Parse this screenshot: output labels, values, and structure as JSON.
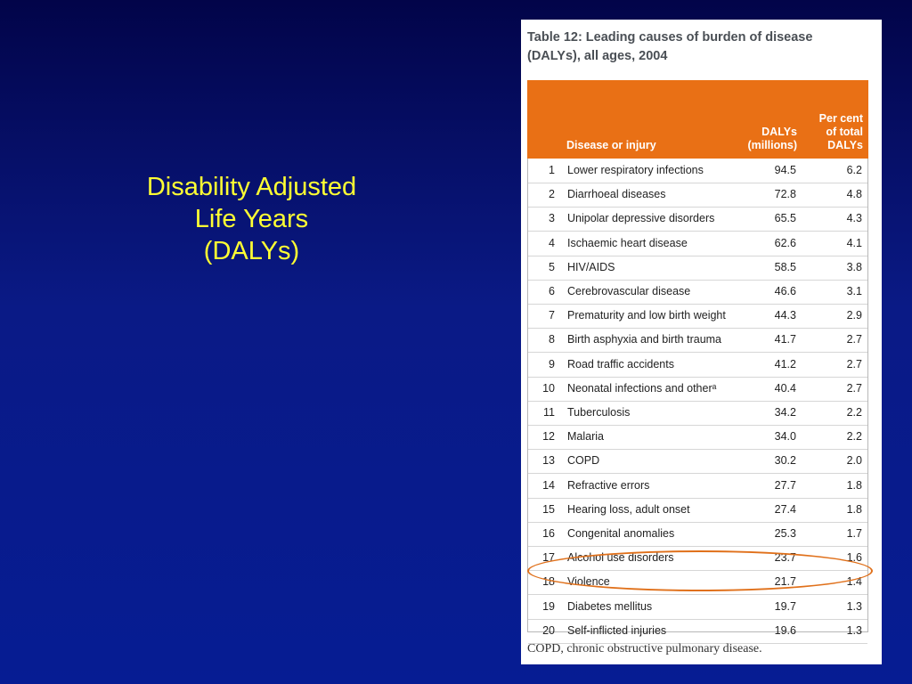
{
  "slide": {
    "title_lines": [
      "Disability Adjusted",
      "Life Years",
      "(DALYs)"
    ]
  },
  "table": {
    "caption": "Table 12: Leading causes of burden of disease (DALYs), all ages, 2004",
    "header_color": "#e97015",
    "columns": {
      "disease": "Disease or injury",
      "dalys_line1": "DALYs",
      "dalys_line2": "(millions)",
      "percent_line1": "Per cent",
      "percent_line2": "of total",
      "percent_line3": "DALYs"
    },
    "rows": [
      {
        "rank": "1",
        "name": "Lower respiratory infections",
        "dalys": "94.5",
        "pct": "6.2"
      },
      {
        "rank": "2",
        "name": "Diarrhoeal diseases",
        "dalys": "72.8",
        "pct": "4.8"
      },
      {
        "rank": "3",
        "name": "Unipolar depressive disorders",
        "dalys": "65.5",
        "pct": "4.3"
      },
      {
        "rank": "4",
        "name": "Ischaemic heart disease",
        "dalys": "62.6",
        "pct": "4.1"
      },
      {
        "rank": "5",
        "name": "HIV/AIDS",
        "dalys": "58.5",
        "pct": "3.8"
      },
      {
        "rank": "6",
        "name": "Cerebrovascular disease",
        "dalys": "46.6",
        "pct": "3.1"
      },
      {
        "rank": "7",
        "name": "Prematurity and low birth weight",
        "dalys": "44.3",
        "pct": "2.9"
      },
      {
        "rank": "8",
        "name": "Birth asphyxia and birth trauma",
        "dalys": "41.7",
        "pct": "2.7"
      },
      {
        "rank": "9",
        "name": "Road traffic accidents",
        "dalys": "41.2",
        "pct": "2.7"
      },
      {
        "rank": "10",
        "name": "Neonatal infections and otherᵃ",
        "dalys": "40.4",
        "pct": "2.7"
      },
      {
        "rank": "11",
        "name": "Tuberculosis",
        "dalys": "34.2",
        "pct": "2.2"
      },
      {
        "rank": "12",
        "name": "Malaria",
        "dalys": "34.0",
        "pct": "2.2"
      },
      {
        "rank": "13",
        "name": "COPD",
        "dalys": "30.2",
        "pct": "2.0"
      },
      {
        "rank": "14",
        "name": "Refractive errors",
        "dalys": "27.7",
        "pct": "1.8"
      },
      {
        "rank": "15",
        "name": "Hearing loss, adult onset",
        "dalys": "27.4",
        "pct": "1.8"
      },
      {
        "rank": "16",
        "name": "Congenital anomalies",
        "dalys": "25.3",
        "pct": "1.7"
      },
      {
        "rank": "17",
        "name": "Alcohol use disorders",
        "dalys": "23.7",
        "pct": "1.6"
      },
      {
        "rank": "18",
        "name": "Violence",
        "dalys": "21.7",
        "pct": "1.4"
      },
      {
        "rank": "19",
        "name": "Diabetes mellitus",
        "dalys": "19.7",
        "pct": "1.3"
      },
      {
        "rank": "20",
        "name": "Self-inflicted injuries",
        "dalys": "19.6",
        "pct": "1.3"
      }
    ],
    "footnote": "COPD, chronic obstructive pulmonary disease.",
    "highlighted_rank": "18"
  }
}
